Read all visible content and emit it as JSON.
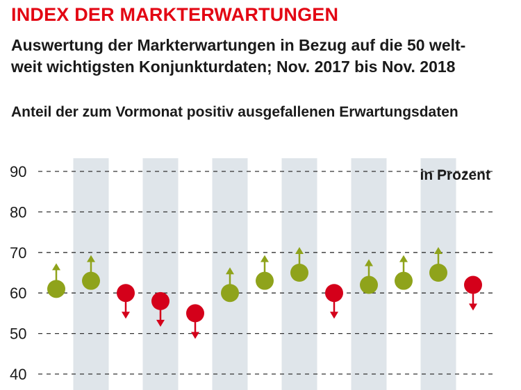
{
  "chart_data": {
    "type": "scatter",
    "title": "INDEX DER MARKTERWARTUNGEN",
    "subtitle_lines": [
      "Auswertung der Markterwartungen in Bezug auf die 50 welt-",
      "weit wichtigsten Konjunkturdaten; Nov. 2017 bis Nov. 2018"
    ],
    "measure_label": "Anteil der zum Vormonat positiv ausgefallenen Erwartungsdaten",
    "unit_label": "in Prozent",
    "ylim": [
      40,
      90
    ],
    "yticks": [
      "90",
      "80",
      "70",
      "60",
      "50",
      "40"
    ],
    "grid": "dashed horizontal",
    "colors": {
      "up": "#8fa31b",
      "down": "#d4001a",
      "band": "#dfe5ea",
      "title": "#e30613"
    },
    "points": [
      {
        "value": 61,
        "direction": "up"
      },
      {
        "value": 63,
        "direction": "up"
      },
      {
        "value": 60,
        "direction": "down"
      },
      {
        "value": 58,
        "direction": "down"
      },
      {
        "value": 55,
        "direction": "down"
      },
      {
        "value": 60,
        "direction": "up"
      },
      {
        "value": 63,
        "direction": "up"
      },
      {
        "value": 65,
        "direction": "up"
      },
      {
        "value": 60,
        "direction": "down"
      },
      {
        "value": 62,
        "direction": "up"
      },
      {
        "value": 63,
        "direction": "up"
      },
      {
        "value": 65,
        "direction": "up"
      },
      {
        "value": 62,
        "direction": "down"
      }
    ]
  }
}
